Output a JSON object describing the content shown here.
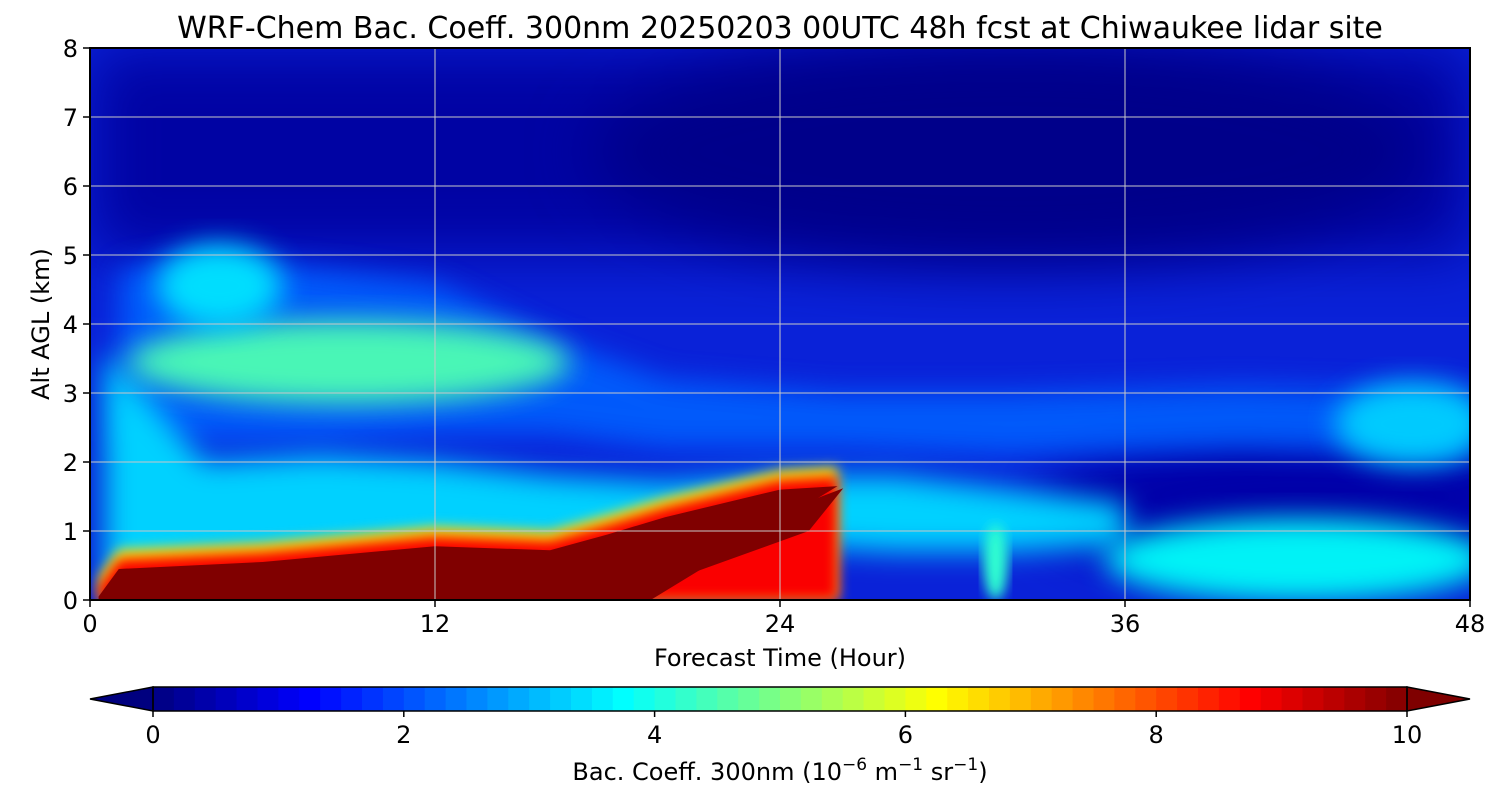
{
  "chart_data": {
    "type": "heatmap",
    "title": "WRF-Chem Bac. Coeff. 300nm  20250203 00UTC 48h fcst at Chiwaukee lidar site",
    "xlabel": "Forecast Time (Hour)",
    "ylabel": "Alt AGL (km)",
    "xlim": [
      0,
      48
    ],
    "ylim": [
      0,
      8
    ],
    "x_ticks": [
      0,
      12,
      24,
      36,
      48
    ],
    "y_ticks": [
      0,
      1,
      2,
      3,
      4,
      5,
      6,
      7,
      8
    ],
    "grid": true,
    "colormap": "jet",
    "colorbar": {
      "label_prefix": "Bac. Coeff. 300nm  (10",
      "label_exp1": "−6",
      "label_mid1": " m",
      "label_exp2": "−1",
      "label_mid2": " sr",
      "label_exp3": "−1",
      "label_suffix": ")",
      "range": [
        0,
        10
      ],
      "ticks": [
        0,
        2,
        4,
        6,
        8,
        10
      ],
      "extend": "both"
    },
    "features": [
      {
        "name": "surface aerosol layer (saturated)",
        "x": [
          0.3,
          1,
          6,
          12,
          16,
          18,
          20,
          24,
          26
        ],
        "top_km": [
          0.05,
          0.45,
          0.55,
          0.78,
          0.72,
          0.95,
          1.2,
          1.6,
          1.65
        ],
        "value": 10
      },
      {
        "name": "elevated aerosol layer",
        "x": [
          2,
          6,
          9,
          12,
          14,
          16
        ],
        "alt_km": [
          3.8,
          3.7,
          3.6,
          3.4,
          3.2,
          3.0
        ],
        "value": 4.5
      },
      {
        "name": "upper plume",
        "x": [
          3,
          6
        ],
        "alt_km": [
          4.5,
          4.6
        ],
        "value": 3.5
      },
      {
        "name": "near-surface layer late",
        "x": [
          36,
          42,
          48
        ],
        "alt_km": [
          0.55,
          0.6,
          0.6
        ],
        "value": 3.8
      },
      {
        "name": "elevated layer late",
        "x": [
          44,
          48
        ],
        "alt_km": [
          2.6,
          2.5
        ],
        "value": 3.3
      }
    ],
    "background_value": 0.8,
    "upper_background_value": 0.3
  }
}
